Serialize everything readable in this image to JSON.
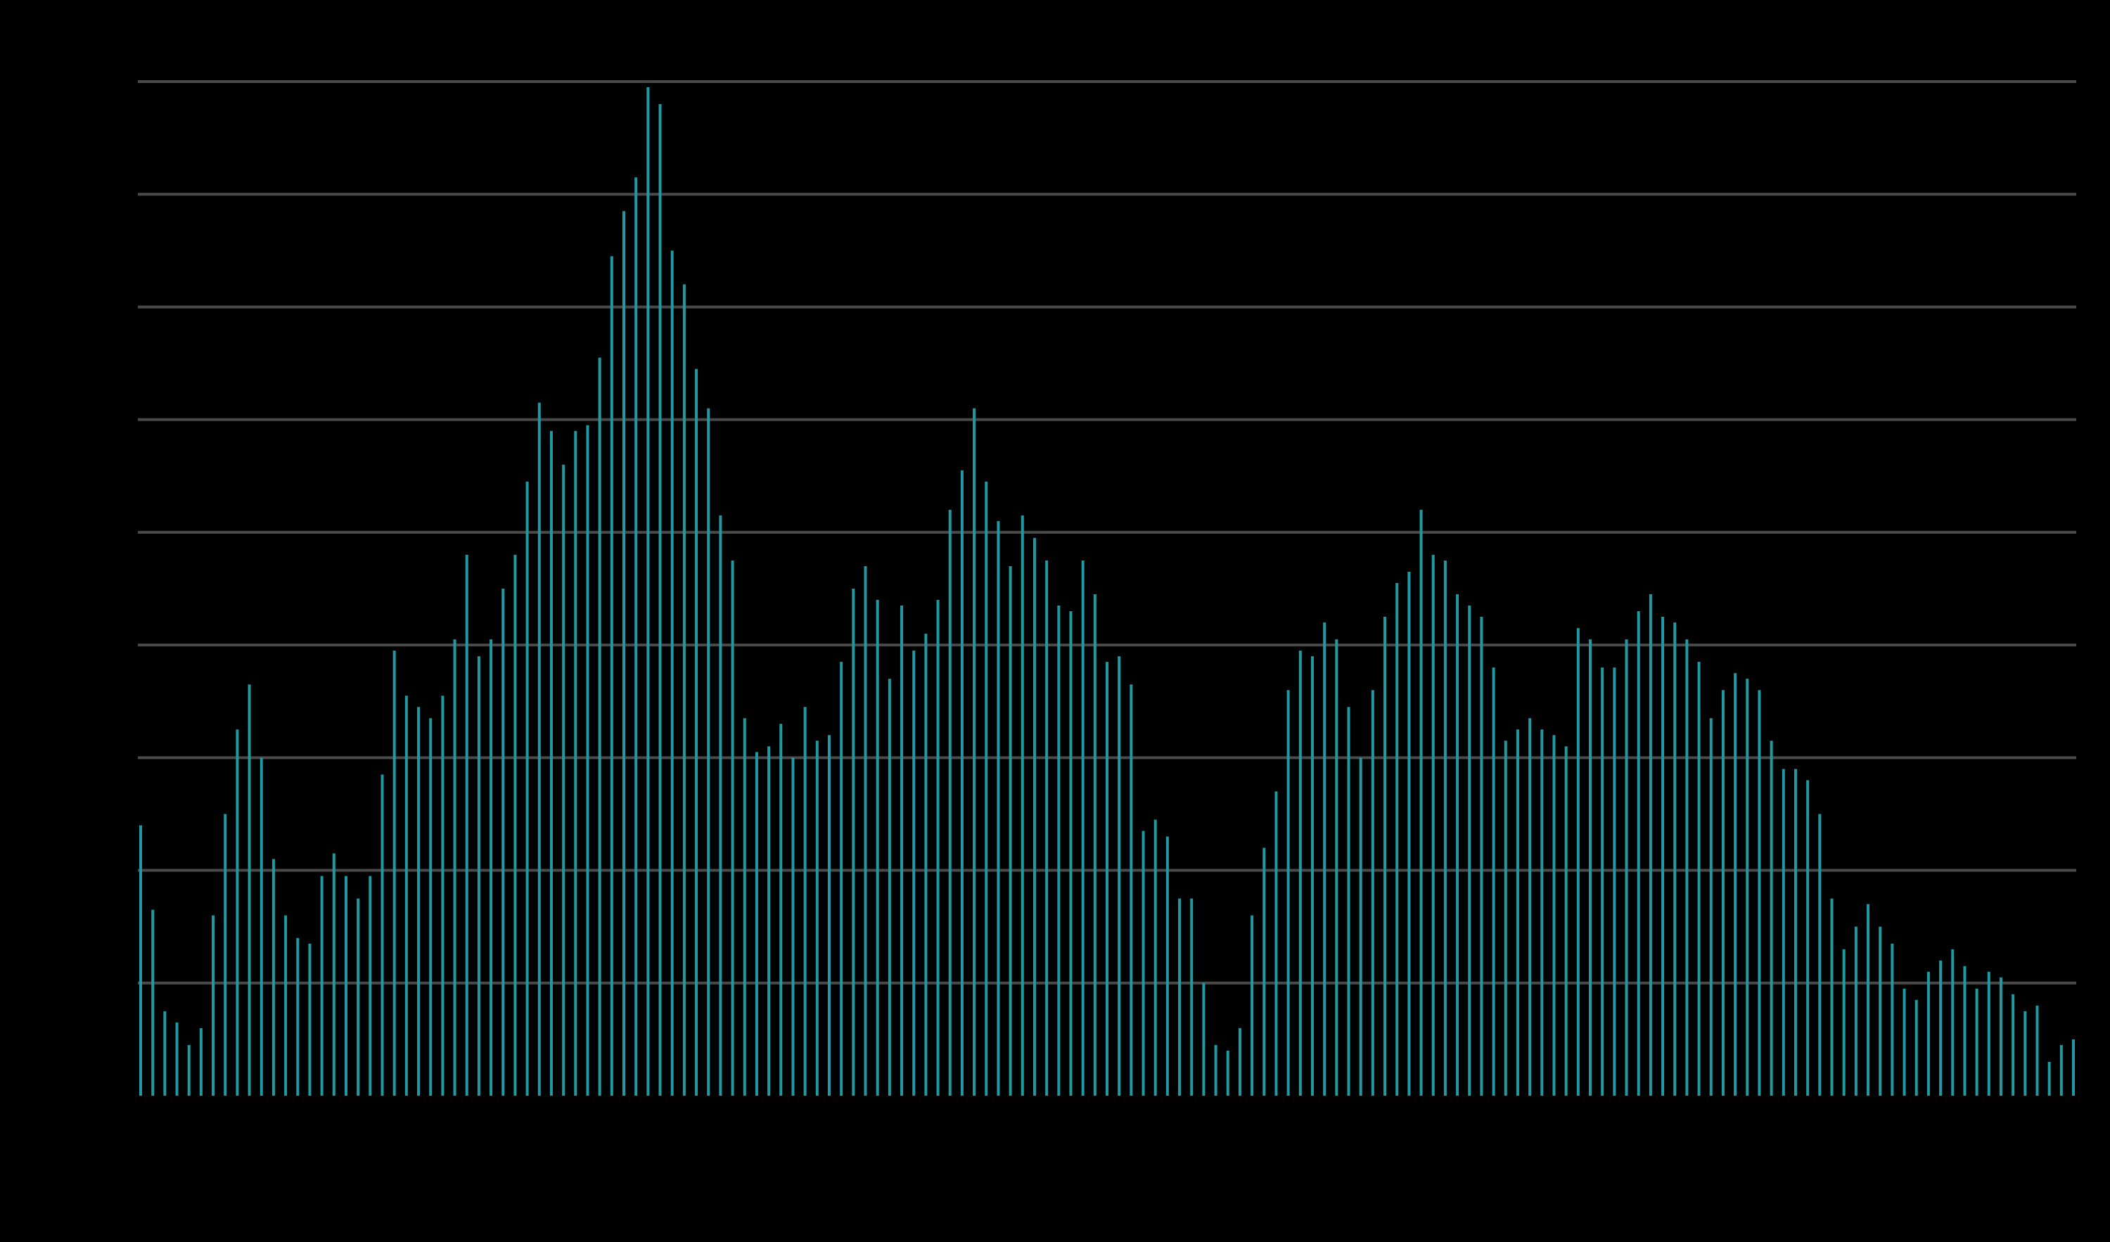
{
  "chart_data": {
    "type": "bar",
    "title": "",
    "xlabel": "",
    "ylabel": "",
    "ylim": [
      0,
      9
    ],
    "grid": true,
    "legend": "none",
    "series": [
      {
        "color": "#1f9aa3",
        "values": [
          2.4,
          1.65,
          0.75,
          0.65,
          0.45,
          0.6,
          1.6,
          2.5,
          3.25,
          3.65,
          3.0,
          2.1,
          1.6,
          1.4,
          1.35,
          1.95,
          2.15,
          1.95,
          1.75,
          1.95,
          2.85,
          3.95,
          3.55,
          3.45,
          3.35,
          3.55,
          4.05,
          4.8,
          3.9,
          4.05,
          4.5,
          4.8,
          5.45,
          6.15,
          5.9,
          5.6,
          5.9,
          5.95,
          6.55,
          7.45,
          7.85,
          8.15,
          8.95,
          8.8,
          7.5,
          7.2,
          6.45,
          6.1,
          5.15,
          4.75,
          3.35,
          3.05,
          3.1,
          3.3,
          3.0,
          3.45,
          3.15,
          3.2,
          3.85,
          4.5,
          4.7,
          4.4,
          3.7,
          4.35,
          3.95,
          4.1,
          4.4,
          5.2,
          5.55,
          6.1,
          5.45,
          5.1,
          4.7,
          5.15,
          4.95,
          4.75,
          4.35,
          4.3,
          4.75,
          4.45,
          3.85,
          3.9,
          3.65,
          2.35,
          2.45,
          2.3,
          1.75,
          1.75,
          1.0,
          0.45,
          0.4,
          0.6,
          1.6,
          2.2,
          2.7,
          3.6,
          3.95,
          3.9,
          4.2,
          4.05,
          3.45,
          3.0,
          3.6,
          4.25,
          4.55,
          4.65,
          5.2,
          4.8,
          4.75,
          4.45,
          4.35,
          4.25,
          3.8,
          3.15,
          3.25,
          3.35,
          3.25,
          3.2,
          3.1,
          4.15,
          4.05,
          3.8,
          3.8,
          4.05,
          4.3,
          4.45,
          4.25,
          4.2,
          4.05,
          3.85,
          3.35,
          3.6,
          3.75,
          3.7,
          3.6,
          3.15,
          2.9,
          2.9,
          2.8,
          2.5,
          1.75,
          1.3,
          1.5,
          1.7,
          1.5,
          1.35,
          0.95,
          0.85,
          1.1,
          1.2,
          1.3,
          1.15,
          0.95,
          1.1,
          1.05,
          0.9,
          0.75,
          0.8,
          0.3,
          0.45,
          0.5
        ]
      }
    ]
  }
}
